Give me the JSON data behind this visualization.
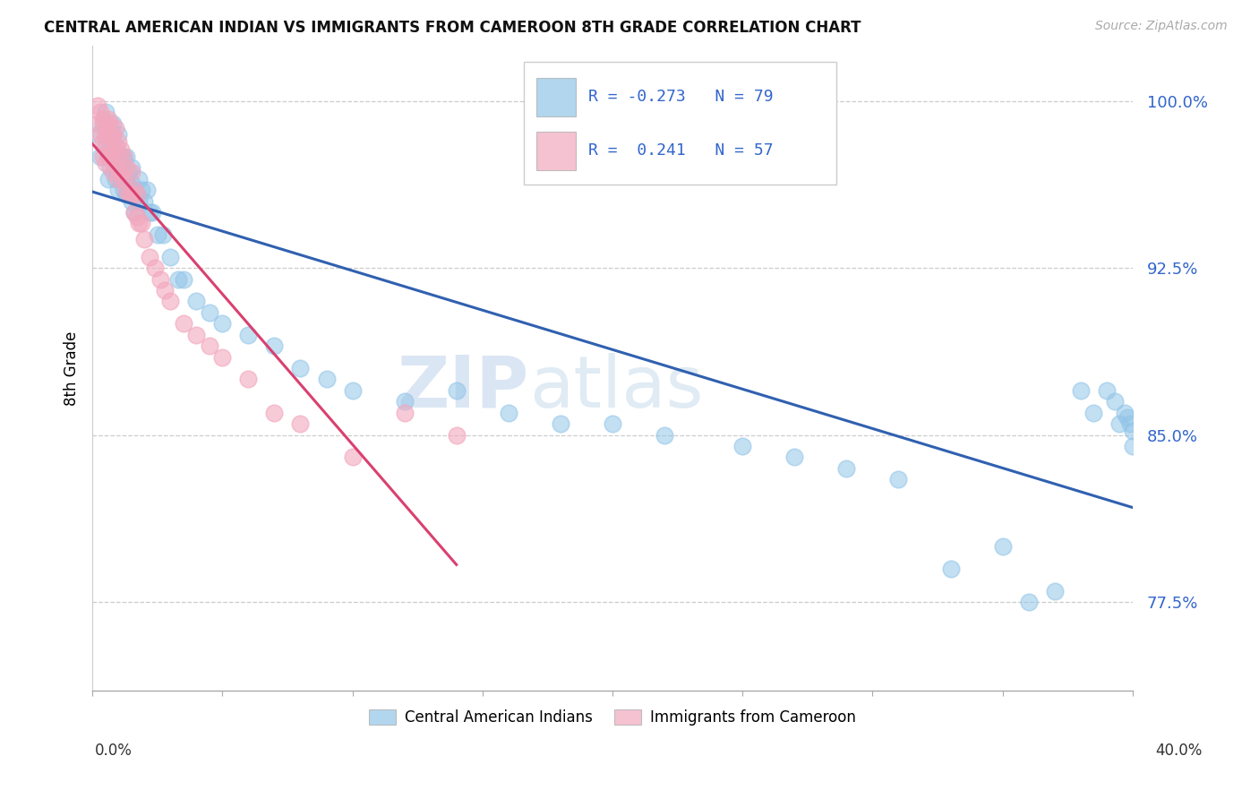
{
  "title": "CENTRAL AMERICAN INDIAN VS IMMIGRANTS FROM CAMEROON 8TH GRADE CORRELATION CHART",
  "source": "Source: ZipAtlas.com",
  "ylabel": "8th Grade",
  "ytick_labels": [
    "77.5%",
    "85.0%",
    "92.5%",
    "100.0%"
  ],
  "ytick_values": [
    0.775,
    0.85,
    0.925,
    1.0
  ],
  "xlim": [
    0.0,
    0.4
  ],
  "ylim": [
    0.735,
    1.025
  ],
  "blue_R": -0.273,
  "blue_N": 79,
  "pink_R": 0.241,
  "pink_N": 57,
  "blue_color": "#92C5E8",
  "pink_color": "#F2A8BE",
  "blue_line_color": "#3060B0",
  "pink_line_color": "#D94070",
  "watermark_zip": "ZIP",
  "watermark_atlas": "atlas",
  "legend_label_blue": "Central American Indians",
  "legend_label_pink": "Immigrants from Cameroon",
  "background_color": "#ffffff",
  "grid_color": "#cccccc",
  "blue_x": [
    0.002,
    0.003,
    0.004,
    0.005,
    0.005,
    0.006,
    0.006,
    0.007,
    0.007,
    0.008,
    0.008,
    0.008,
    0.009,
    0.009,
    0.009,
    0.01,
    0.01,
    0.01,
    0.01,
    0.011,
    0.011,
    0.012,
    0.012,
    0.012,
    0.013,
    0.013,
    0.013,
    0.014,
    0.014,
    0.015,
    0.015,
    0.015,
    0.016,
    0.016,
    0.017,
    0.018,
    0.018,
    0.019,
    0.02,
    0.021,
    0.022,
    0.023,
    0.025,
    0.027,
    0.03,
    0.033,
    0.035,
    0.04,
    0.045,
    0.05,
    0.06,
    0.07,
    0.08,
    0.09,
    0.1,
    0.12,
    0.14,
    0.16,
    0.18,
    0.2,
    0.22,
    0.25,
    0.27,
    0.29,
    0.31,
    0.33,
    0.35,
    0.36,
    0.37,
    0.38,
    0.385,
    0.39,
    0.393,
    0.395,
    0.397,
    0.398,
    0.399,
    0.4,
    0.4
  ],
  "blue_y": [
    0.985,
    0.975,
    0.99,
    0.995,
    0.98,
    0.975,
    0.965,
    0.98,
    0.97,
    0.99,
    0.985,
    0.975,
    0.98,
    0.975,
    0.965,
    0.985,
    0.975,
    0.97,
    0.96,
    0.975,
    0.965,
    0.975,
    0.968,
    0.96,
    0.975,
    0.965,
    0.958,
    0.968,
    0.958,
    0.97,
    0.963,
    0.955,
    0.96,
    0.95,
    0.958,
    0.965,
    0.955,
    0.96,
    0.955,
    0.96,
    0.95,
    0.95,
    0.94,
    0.94,
    0.93,
    0.92,
    0.92,
    0.91,
    0.905,
    0.9,
    0.895,
    0.89,
    0.88,
    0.875,
    0.87,
    0.865,
    0.87,
    0.86,
    0.855,
    0.855,
    0.85,
    0.845,
    0.84,
    0.835,
    0.83,
    0.79,
    0.8,
    0.775,
    0.78,
    0.87,
    0.86,
    0.87,
    0.865,
    0.855,
    0.86,
    0.858,
    0.855,
    0.852,
    0.845
  ],
  "pink_x": [
    0.002,
    0.002,
    0.003,
    0.003,
    0.004,
    0.004,
    0.004,
    0.005,
    0.005,
    0.005,
    0.005,
    0.006,
    0.006,
    0.006,
    0.007,
    0.007,
    0.007,
    0.008,
    0.008,
    0.008,
    0.009,
    0.009,
    0.009,
    0.01,
    0.01,
    0.01,
    0.011,
    0.011,
    0.012,
    0.012,
    0.013,
    0.013,
    0.014,
    0.015,
    0.015,
    0.016,
    0.016,
    0.017,
    0.017,
    0.018,
    0.019,
    0.02,
    0.022,
    0.024,
    0.026,
    0.028,
    0.03,
    0.035,
    0.04,
    0.045,
    0.05,
    0.06,
    0.07,
    0.08,
    0.1,
    0.12,
    0.14
  ],
  "pink_y": [
    0.998,
    0.99,
    0.995,
    0.985,
    0.992,
    0.982,
    0.975,
    0.99,
    0.985,
    0.98,
    0.972,
    0.992,
    0.985,
    0.975,
    0.99,
    0.985,
    0.975,
    0.985,
    0.978,
    0.968,
    0.988,
    0.98,
    0.97,
    0.982,
    0.975,
    0.965,
    0.978,
    0.968,
    0.975,
    0.965,
    0.97,
    0.96,
    0.958,
    0.968,
    0.958,
    0.96,
    0.95,
    0.958,
    0.948,
    0.945,
    0.945,
    0.938,
    0.93,
    0.925,
    0.92,
    0.915,
    0.91,
    0.9,
    0.895,
    0.89,
    0.885,
    0.875,
    0.86,
    0.855,
    0.84,
    0.86,
    0.85
  ]
}
